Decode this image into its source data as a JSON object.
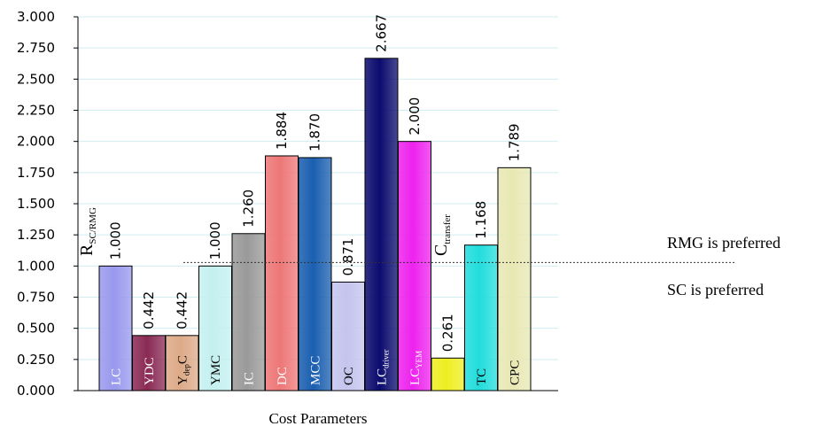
{
  "chart_data": {
    "type": "bar",
    "categories": [
      {
        "main": "LC",
        "sub": ""
      },
      {
        "main": "YDC",
        "sub": ""
      },
      {
        "main": "Y",
        "sub": "dep",
        "after": "C"
      },
      {
        "main": "YMC",
        "sub": ""
      },
      {
        "main": "IC",
        "sub": ""
      },
      {
        "main": "DC",
        "sub": ""
      },
      {
        "main": "MCC",
        "sub": ""
      },
      {
        "main": "OC",
        "sub": ""
      },
      {
        "main": "LC",
        "sub": "driver"
      },
      {
        "main": "LC",
        "sub": "YEM"
      },
      {
        "main": "",
        "sub": ""
      },
      {
        "main": "TC",
        "sub": ""
      },
      {
        "main": "CPC",
        "sub": ""
      }
    ],
    "values": [
      1.0,
      0.442,
      0.442,
      1.0,
      1.26,
      1.884,
      1.87,
      0.871,
      2.667,
      2.0,
      0.261,
      1.168,
      1.789
    ],
    "value_labels": [
      "1.000",
      "0.442",
      "0.442",
      "1.000",
      "1.260",
      "1.884",
      "1.870",
      "0.871",
      "2.667",
      "2.000",
      "0.261",
      "1.168",
      "1.789"
    ],
    "colors": [
      "#9999ee",
      "#8a2a55",
      "#ddaa88",
      "#c4f0f0",
      "#9a9a9a",
      "#ee7777",
      "#1a5fb0",
      "#c4c4ee",
      "#0b0b6e",
      "#ee22ee",
      "#eeee22",
      "#22dddd",
      "#e8e8b4"
    ],
    "label_colors": [
      "#ffffff",
      "#ffffff",
      "#000000",
      "#000000",
      "#ffffff",
      "#ffffff",
      "#ffffff",
      "#000000",
      "#ffffff",
      "#ffffff",
      "#000000",
      "#000000",
      "#000000"
    ],
    "yticks": [
      "0.000",
      "0.250",
      "0.500",
      "0.750",
      "1.000",
      "1.250",
      "1.500",
      "1.750",
      "2.000",
      "2.250",
      "2.500",
      "2.750",
      "3.000"
    ],
    "ylim": [
      0,
      3
    ],
    "xlabel": "Cost Parameters",
    "ylabel": "",
    "title": "",
    "grid": true,
    "reference_line": {
      "value": 1.0
    },
    "legend_position": "none"
  },
  "annotations": {
    "ratio": {
      "main": "R",
      "sub": "SC/RMG"
    },
    "transfer": {
      "main": "C",
      "sub": "transfer"
    },
    "above_line": "RMG is preferred",
    "below_line": "SC is preferred"
  }
}
